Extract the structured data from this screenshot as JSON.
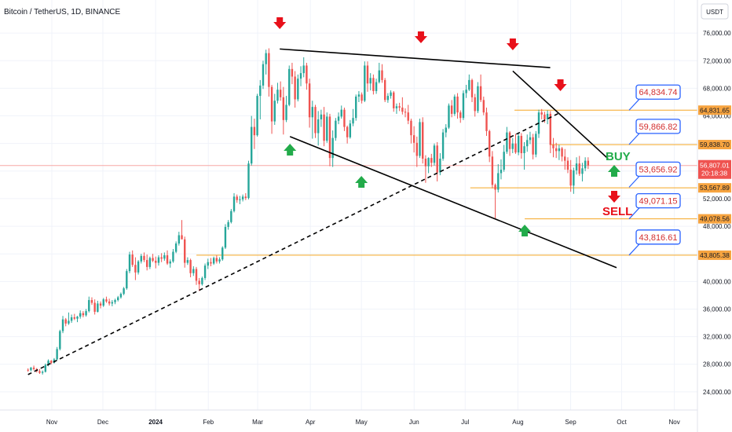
{
  "header": {
    "title": "Bitcoin / TetherUS, 1D, BINANCE",
    "currency": "USDT"
  },
  "colors": {
    "up": "#26a69a",
    "down": "#ef5350",
    "level": "#f5a623",
    "level_tag": "#f7a440",
    "callout_border": "#2962ff",
    "current_tag": "#ef5350",
    "buy": "#22ab4a",
    "sell": "#e8101a",
    "trendline": "#000000"
  },
  "chart_data": {
    "type": "candlestick",
    "symbol": "BTCUSDT",
    "timeframe": "1D",
    "exchange": "BINANCE",
    "x_ticks": [
      "Nov",
      "Dec",
      "2024",
      "Feb",
      "Mar",
      "Apr",
      "May",
      "Jun",
      "Jul",
      "Aug",
      "Sep",
      "Oct",
      "Nov"
    ],
    "y_ticks": [
      "24,000.00",
      "28,000.00",
      "32,000.00",
      "36,000.00",
      "40,000.00",
      "44,000.00",
      "48,000.00",
      "52,000.00",
      "56,000.00",
      "60,000.00",
      "64,000.00",
      "68,000.00",
      "72,000.00",
      "76,000.00"
    ],
    "ylim": [
      22500,
      77500
    ],
    "current_price": {
      "price": "56,807.01",
      "countdown": "20:18:38",
      "value": 56807.01
    },
    "horizontal_levels": [
      {
        "label": "64,831.65",
        "value": 64831.65,
        "from": "2024-07-30"
      },
      {
        "label": "59,838.70",
        "value": 59838.7,
        "from": "2024-08-20"
      },
      {
        "label": "53,567.89",
        "value": 53567.89,
        "from": "2024-07-04"
      },
      {
        "label": "49,078.56",
        "value": 49078.56,
        "from": "2024-08-05"
      },
      {
        "label": "43,805.38",
        "value": 43805.38,
        "from": "2024-01-25"
      }
    ],
    "callouts": [
      {
        "label": "64,834.74",
        "value": 64834.74
      },
      {
        "label": "59,866.82",
        "value": 59866.82
      },
      {
        "label": "53,656.92",
        "value": 53656.92
      },
      {
        "label": "49,071.15",
        "value": 49071.15
      },
      {
        "label": "43,816.61",
        "value": 43816.61
      }
    ],
    "trendlines": [
      {
        "style": "solid",
        "start": [
          "2024-03-14",
          73700
        ],
        "end": [
          "2024-08-20",
          71000
        ]
      },
      {
        "style": "solid",
        "start": [
          "2024-03-20",
          61000
        ],
        "end": [
          "2024-09-28",
          42000
        ]
      },
      {
        "style": "solid",
        "start": [
          "2024-07-29",
          70500
        ],
        "end": [
          "2024-09-23",
          57800
        ]
      },
      {
        "style": "dashed",
        "start": [
          "2023-10-18",
          26500
        ],
        "end": [
          "2024-08-26",
          64500
        ]
      }
    ],
    "down_markers": [
      "2024-03-14",
      "2024-06-05",
      "2024-07-29",
      "2024-08-26"
    ],
    "up_markers": [
      "2024-03-20",
      "2024-05-01",
      "2024-08-05"
    ],
    "signals": {
      "buy": "BUY",
      "sell": "SELL"
    },
    "candles_ohlc": [
      [
        27200,
        27400,
        26900,
        27150
      ],
      [
        27150,
        27600,
        26950,
        27500
      ],
      [
        27500,
        27800,
        27100,
        27300
      ],
      [
        27300,
        27450,
        26800,
        27000
      ],
      [
        27000,
        27300,
        26600,
        26750
      ],
      [
        26750,
        27100,
        26500,
        26900
      ],
      [
        26900,
        28100,
        26800,
        27900
      ],
      [
        27900,
        28700,
        27700,
        28500
      ],
      [
        28500,
        28600,
        28000,
        28200
      ],
      [
        28200,
        28900,
        28100,
        28700
      ],
      [
        28700,
        30500,
        28600,
        30200
      ],
      [
        30200,
        33000,
        30000,
        32800
      ],
      [
        32800,
        35000,
        32500,
        34500
      ],
      [
        34500,
        34700,
        33500,
        33900
      ],
      [
        33900,
        35500,
        33700,
        34300
      ],
      [
        34300,
        35200,
        34000,
        34800
      ],
      [
        34800,
        35300,
        34400,
        34600
      ],
      [
        34600,
        35000,
        34100,
        34900
      ],
      [
        34900,
        35800,
        34600,
        35400
      ],
      [
        35400,
        35700,
        34800,
        35100
      ],
      [
        35100,
        36000,
        34900,
        35700
      ],
      [
        35700,
        37800,
        35500,
        37300
      ],
      [
        37300,
        37700,
        36600,
        36900
      ],
      [
        36900,
        37400,
        35200,
        35600
      ],
      [
        35600,
        37200,
        35500,
        36800
      ],
      [
        36800,
        37100,
        36100,
        36500
      ],
      [
        36500,
        37600,
        36300,
        37400
      ],
      [
        37400,
        37800,
        36900,
        37100
      ],
      [
        37100,
        37500,
        36500,
        36800
      ],
      [
        36800,
        37300,
        36400,
        37000
      ],
      [
        37000,
        37500,
        36700,
        37300
      ],
      [
        37300,
        37900,
        37100,
        37700
      ],
      [
        37700,
        38400,
        37500,
        38200
      ],
      [
        38200,
        39200,
        38000,
        39000
      ],
      [
        39000,
        41800,
        38800,
        41500
      ],
      [
        41500,
        44300,
        41200,
        43900
      ],
      [
        43900,
        44500,
        42100,
        42400
      ],
      [
        42400,
        43500,
        40200,
        41300
      ],
      [
        41300,
        43100,
        41000,
        42900
      ],
      [
        42900,
        44000,
        42600,
        43700
      ],
      [
        43700,
        44200,
        42800,
        43100
      ],
      [
        43100,
        43900,
        41600,
        42100
      ],
      [
        42100,
        43600,
        41800,
        43400
      ],
      [
        43400,
        44000,
        42800,
        43000
      ],
      [
        43000,
        43600,
        41900,
        42700
      ],
      [
        42700,
        43800,
        42300,
        43500
      ],
      [
        43500,
        44100,
        42800,
        43300
      ],
      [
        43300,
        44200,
        43000,
        43800
      ],
      [
        43800,
        44500,
        42400,
        42600
      ],
      [
        42600,
        43200,
        42000,
        42900
      ],
      [
        42900,
        44700,
        42700,
        44300
      ],
      [
        44300,
        45800,
        44100,
        45500
      ],
      [
        45500,
        47200,
        45200,
        46700
      ],
      [
        46700,
        48900,
        46300,
        46100
      ],
      [
        46100,
        46500,
        42000,
        42700
      ],
      [
        42700,
        43500,
        42400,
        43100
      ],
      [
        43100,
        43300,
        40600,
        41200
      ],
      [
        41200,
        42200,
        40800,
        41800
      ],
      [
        41800,
        42100,
        39500,
        40100
      ],
      [
        40100,
        40500,
        38600,
        39600
      ],
      [
        39600,
        40700,
        39400,
        40500
      ],
      [
        40500,
        42600,
        40200,
        42300
      ],
      [
        42300,
        43300,
        41800,
        42800
      ],
      [
        42800,
        43400,
        42200,
        42600
      ],
      [
        42600,
        43600,
        42400,
        43400
      ],
      [
        43400,
        43800,
        42600,
        42900
      ],
      [
        42900,
        43500,
        42600,
        43200
      ],
      [
        43200,
        45100,
        43000,
        44900
      ],
      [
        44900,
        48300,
        44700,
        47900
      ],
      [
        47900,
        48900,
        47500,
        48600
      ],
      [
        48600,
        50500,
        48400,
        50200
      ],
      [
        50200,
        52800,
        50000,
        52300
      ],
      [
        52300,
        52600,
        51400,
        51800
      ],
      [
        51800,
        52400,
        51200,
        51900
      ],
      [
        51900,
        52600,
        51600,
        52300
      ],
      [
        52300,
        52800,
        51800,
        52100
      ],
      [
        52100,
        57500,
        51900,
        57100
      ],
      [
        57100,
        64000,
        56800,
        62400
      ],
      [
        62400,
        63600,
        59200,
        61200
      ],
      [
        61200,
        67200,
        61000,
        66900
      ],
      [
        66900,
        69200,
        63500,
        68400
      ],
      [
        68400,
        72000,
        67900,
        71500
      ],
      [
        71500,
        73600,
        70000,
        73100
      ],
      [
        73100,
        73800,
        66800,
        68200
      ],
      [
        68200,
        68500,
        61400,
        63200
      ],
      [
        63200,
        67200,
        62700,
        66200
      ],
      [
        66200,
        68800,
        65800,
        67800
      ],
      [
        67800,
        69000,
        66200,
        66700
      ],
      [
        66700,
        68200,
        61300,
        63400
      ],
      [
        63400,
        66900,
        63100,
        65600
      ],
      [
        65600,
        71300,
        65400,
        70800
      ],
      [
        70800,
        71700,
        68600,
        69700
      ],
      [
        69700,
        70500,
        65200,
        66400
      ],
      [
        66400,
        70000,
        66100,
        69400
      ],
      [
        69400,
        71200,
        68300,
        70200
      ],
      [
        70200,
        72500,
        69600,
        71300
      ],
      [
        71300,
        71700,
        67800,
        68700
      ],
      [
        68700,
        69400,
        62300,
        63800
      ],
      [
        63800,
        66200,
        60700,
        65300
      ],
      [
        65300,
        65600,
        60800,
        61500
      ],
      [
        61500,
        64700,
        59700,
        63500
      ],
      [
        63500,
        64900,
        62400,
        64200
      ],
      [
        64200,
        65300,
        59600,
        60400
      ],
      [
        60400,
        64500,
        60100,
        63900
      ],
      [
        63900,
        64300,
        56700,
        57900
      ],
      [
        57900,
        61900,
        56600,
        60800
      ],
      [
        60800,
        63700,
        60400,
        63300
      ],
      [
        63300,
        64500,
        62800,
        63900
      ],
      [
        63900,
        65500,
        63600,
        64900
      ],
      [
        64900,
        65200,
        61800,
        62400
      ],
      [
        62400,
        62600,
        60000,
        60900
      ],
      [
        60900,
        63400,
        60700,
        62900
      ],
      [
        62900,
        65000,
        62500,
        63700
      ],
      [
        63700,
        67100,
        63300,
        66800
      ],
      [
        66800,
        67600,
        66000,
        67100
      ],
      [
        67100,
        67400,
        65800,
        66200
      ],
      [
        66200,
        71900,
        66000,
        71300
      ],
      [
        71300,
        71900,
        67500,
        68700
      ],
      [
        68700,
        70200,
        67700,
        69500
      ],
      [
        69500,
        70000,
        67100,
        67600
      ],
      [
        67600,
        69400,
        67200,
        68900
      ],
      [
        68900,
        71700,
        68700,
        70600
      ],
      [
        70600,
        71500,
        68800,
        69200
      ],
      [
        69200,
        69500,
        66000,
        66300
      ],
      [
        66300,
        67300,
        65900,
        66900
      ],
      [
        66900,
        67700,
        66500,
        67400
      ],
      [
        67400,
        67600,
        64600,
        65100
      ],
      [
        65100,
        65800,
        64300,
        65400
      ],
      [
        65400,
        65900,
        64700,
        65200
      ],
      [
        65200,
        66700,
        64200,
        64600
      ],
      [
        64600,
        65100,
        63800,
        64500
      ],
      [
        64500,
        65600,
        62800,
        63300
      ],
      [
        63300,
        63600,
        60000,
        61200
      ],
      [
        61200,
        62500,
        58700,
        60100
      ],
      [
        60100,
        61000,
        56600,
        58200
      ],
      [
        58200,
        63600,
        57900,
        63100
      ],
      [
        63100,
        63800,
        57100,
        57800
      ],
      [
        57800,
        58300,
        54300,
        56700
      ],
      [
        56700,
        58000,
        55700,
        57900
      ],
      [
        57900,
        58500,
        56600,
        57200
      ],
      [
        57200,
        60000,
        56800,
        59700
      ],
      [
        59700,
        60200,
        54500,
        55800
      ],
      [
        55800,
        58600,
        55400,
        57800
      ],
      [
        57800,
        62100,
        57500,
        61600
      ],
      [
        61600,
        62800,
        60900,
        62300
      ],
      [
        62300,
        65800,
        62100,
        65500
      ],
      [
        65500,
        66300,
        63800,
        64300
      ],
      [
        64300,
        67100,
        64000,
        66800
      ],
      [
        66800,
        67300,
        63600,
        64500
      ],
      [
        64500,
        64800,
        63000,
        63700
      ],
      [
        63700,
        67700,
        63400,
        67300
      ],
      [
        67300,
        68500,
        66600,
        67800
      ],
      [
        67800,
        70000,
        67600,
        69200
      ],
      [
        69200,
        69400,
        66000,
        66700
      ],
      [
        66700,
        67200,
        63900,
        64700
      ],
      [
        64700,
        68900,
        64400,
        68300
      ],
      [
        68300,
        70000,
        66000,
        66300
      ],
      [
        66300,
        66800,
        64100,
        64500
      ],
      [
        64500,
        65200,
        61100,
        61800
      ],
      [
        61800,
        62000,
        57300,
        58100
      ],
      [
        58100,
        58900,
        53500,
        54000
      ],
      [
        54000,
        54200,
        49100,
        53300
      ],
      [
        53300,
        57000,
        52900,
        55700
      ],
      [
        55700,
        57700,
        54800,
        56200
      ],
      [
        56200,
        59800,
        55900,
        58800
      ],
      [
        58800,
        62400,
        58500,
        61600
      ],
      [
        61600,
        61800,
        58200,
        59200
      ],
      [
        59200,
        60800,
        58600,
        60000
      ],
      [
        60000,
        61400,
        58500,
        58700
      ],
      [
        58700,
        61500,
        58300,
        61100
      ],
      [
        61100,
        61500,
        57800,
        58600
      ],
      [
        58600,
        60200,
        56200,
        59600
      ],
      [
        59600,
        61300,
        58800,
        60500
      ],
      [
        60500,
        61700,
        59900,
        60900
      ],
      [
        60900,
        61400,
        57700,
        58400
      ],
      [
        58400,
        61800,
        58000,
        61400
      ],
      [
        61400,
        64900,
        60800,
        64500
      ],
      [
        64500,
        65000,
        63500,
        64200
      ],
      [
        64200,
        64600,
        63000,
        63500
      ],
      [
        63500,
        64800,
        62800,
        64300
      ],
      [
        64300,
        64700,
        58600,
        59800
      ],
      [
        59800,
        60800,
        58000,
        59300
      ],
      [
        59300,
        60100,
        57900,
        58900
      ],
      [
        58900,
        59800,
        57600,
        59300
      ],
      [
        59300,
        59500,
        57400,
        58100
      ],
      [
        58100,
        59200,
        56200,
        57500
      ],
      [
        57500,
        58000,
        55700,
        56200
      ],
      [
        56200,
        57600,
        53000,
        53900
      ],
      [
        53900,
        56500,
        52700,
        56100
      ],
      [
        56100,
        58000,
        55500,
        57100
      ],
      [
        57100,
        58200,
        55300,
        55600
      ],
      [
        55600,
        57200,
        54500,
        56400
      ],
      [
        56400,
        58000,
        56000,
        57500
      ],
      [
        57500,
        58000,
        56300,
        56807
      ]
    ],
    "candle_start": "2023-10-18"
  }
}
